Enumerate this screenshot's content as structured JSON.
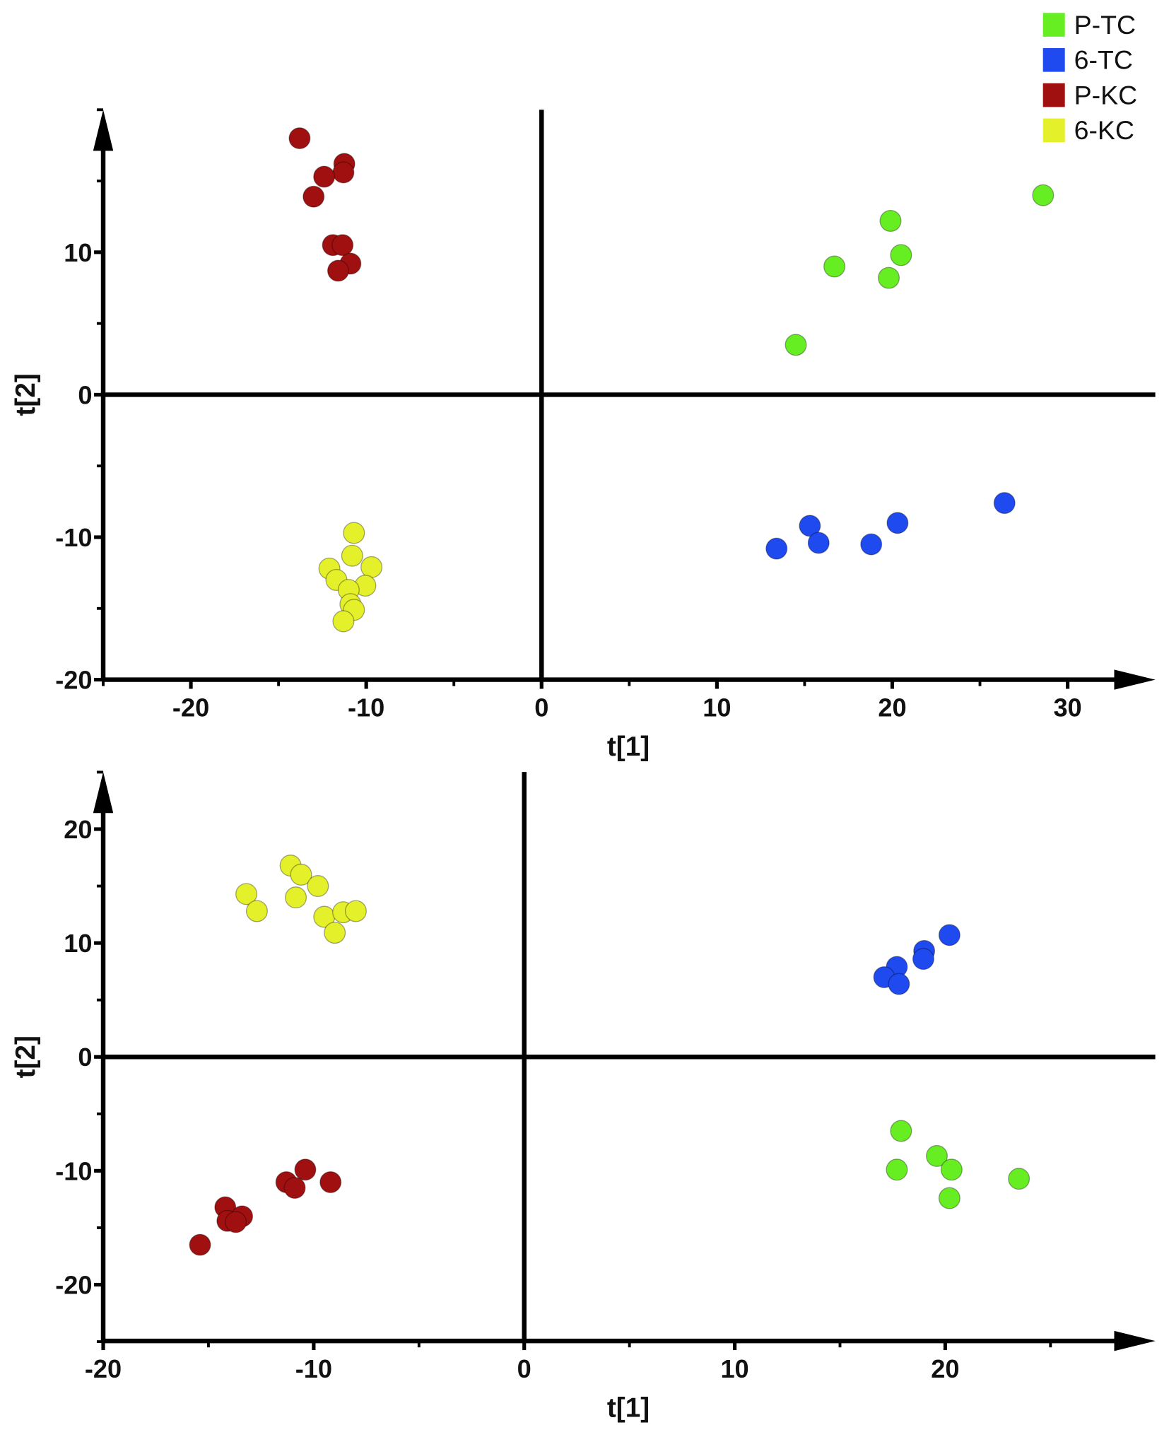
{
  "legend": {
    "position": "top-right",
    "items": [
      {
        "label": "P-TC",
        "color": "#66ee22"
      },
      {
        "label": "6-TC",
        "color": "#1f4af0"
      },
      {
        "label": "P-KC",
        "color": "#a01010"
      },
      {
        "label": "6-KC",
        "color": "#e4f02a"
      }
    ]
  },
  "chart_data": [
    {
      "type": "scatter",
      "xlabel": "t[1]",
      "ylabel": "t[2]",
      "xlim": [
        -25,
        35
      ],
      "ylim": [
        -20,
        20
      ],
      "xticks": [
        -20,
        -10,
        0,
        10,
        20,
        30
      ],
      "yticks": [
        -20,
        -10,
        0,
        10
      ],
      "grid": false,
      "series": [
        {
          "name": "P-TC",
          "color": "#66ee22",
          "points": [
            [
              28.6,
              14.0
            ],
            [
              19.9,
              12.2
            ],
            [
              20.5,
              9.8
            ],
            [
              16.7,
              9.0
            ],
            [
              19.8,
              8.2
            ],
            [
              14.5,
              3.5
            ]
          ]
        },
        {
          "name": "6-TC",
          "color": "#1f4af0",
          "points": [
            [
              26.4,
              -7.6
            ],
            [
              15.3,
              -9.2
            ],
            [
              20.3,
              -9.0
            ],
            [
              13.4,
              -10.8
            ],
            [
              15.8,
              -10.4
            ],
            [
              18.8,
              -10.5
            ]
          ]
        },
        {
          "name": "P-KC",
          "color": "#a01010",
          "points": [
            [
              -13.8,
              18.0
            ],
            [
              -11.25,
              16.2
            ],
            [
              -11.3,
              15.6
            ],
            [
              -12.4,
              15.3
            ],
            [
              -13.0,
              13.9
            ],
            [
              -11.9,
              10.5
            ],
            [
              -11.35,
              10.5
            ],
            [
              -10.9,
              9.2
            ],
            [
              -11.6,
              8.7
            ]
          ]
        },
        {
          "name": "6-KC",
          "color": "#e4f02a",
          "points": [
            [
              -10.7,
              -9.7
            ],
            [
              -10.8,
              -11.3
            ],
            [
              -9.7,
              -12.1
            ],
            [
              -12.1,
              -12.2
            ],
            [
              -11.7,
              -13.0
            ],
            [
              -10.05,
              -13.4
            ],
            [
              -11.0,
              -13.7
            ],
            [
              -10.9,
              -14.7
            ],
            [
              -10.7,
              -15.1
            ],
            [
              -11.3,
              -15.9
            ]
          ]
        }
      ]
    },
    {
      "type": "scatter",
      "xlabel": "t[1]",
      "ylabel": "t[2]",
      "xlim": [
        -20,
        30
      ],
      "ylim": [
        -25,
        25
      ],
      "xticks": [
        -20,
        -10,
        0,
        10,
        20
      ],
      "yticks": [
        -20,
        -10,
        0,
        10,
        20
      ],
      "grid": false,
      "series": [
        {
          "name": "P-TC",
          "color": "#66ee22",
          "points": [
            [
              17.9,
              -6.5
            ],
            [
              19.6,
              -8.7
            ],
            [
              17.7,
              -9.9
            ],
            [
              20.3,
              -9.9
            ],
            [
              23.5,
              -10.7
            ],
            [
              20.2,
              -12.4
            ]
          ]
        },
        {
          "name": "6-TC",
          "color": "#1f4af0",
          "points": [
            [
              20.2,
              10.7
            ],
            [
              19.0,
              9.3
            ],
            [
              18.96,
              8.6
            ],
            [
              17.7,
              7.9
            ],
            [
              17.1,
              7.0
            ],
            [
              17.8,
              6.4
            ]
          ]
        },
        {
          "name": "P-KC",
          "color": "#a01010",
          "points": [
            [
              -10.4,
              -9.9
            ],
            [
              -9.2,
              -11.0
            ],
            [
              -11.3,
              -11.0
            ],
            [
              -10.9,
              -11.5
            ],
            [
              -14.2,
              -13.2
            ],
            [
              -14.1,
              -14.4
            ],
            [
              -13.4,
              -14.0
            ],
            [
              -13.7,
              -14.5
            ],
            [
              -15.4,
              -16.5
            ]
          ]
        },
        {
          "name": "6-KC",
          "color": "#e4f02a",
          "points": [
            [
              -11.1,
              16.8
            ],
            [
              -10.6,
              16.0
            ],
            [
              -9.8,
              15.0
            ],
            [
              -13.2,
              14.3
            ],
            [
              -10.85,
              14.0
            ],
            [
              -12.7,
              12.8
            ],
            [
              -9.5,
              12.3
            ],
            [
              -8.6,
              12.7
            ],
            [
              -8.0,
              12.8
            ],
            [
              -9.0,
              10.9
            ]
          ]
        }
      ]
    }
  ]
}
